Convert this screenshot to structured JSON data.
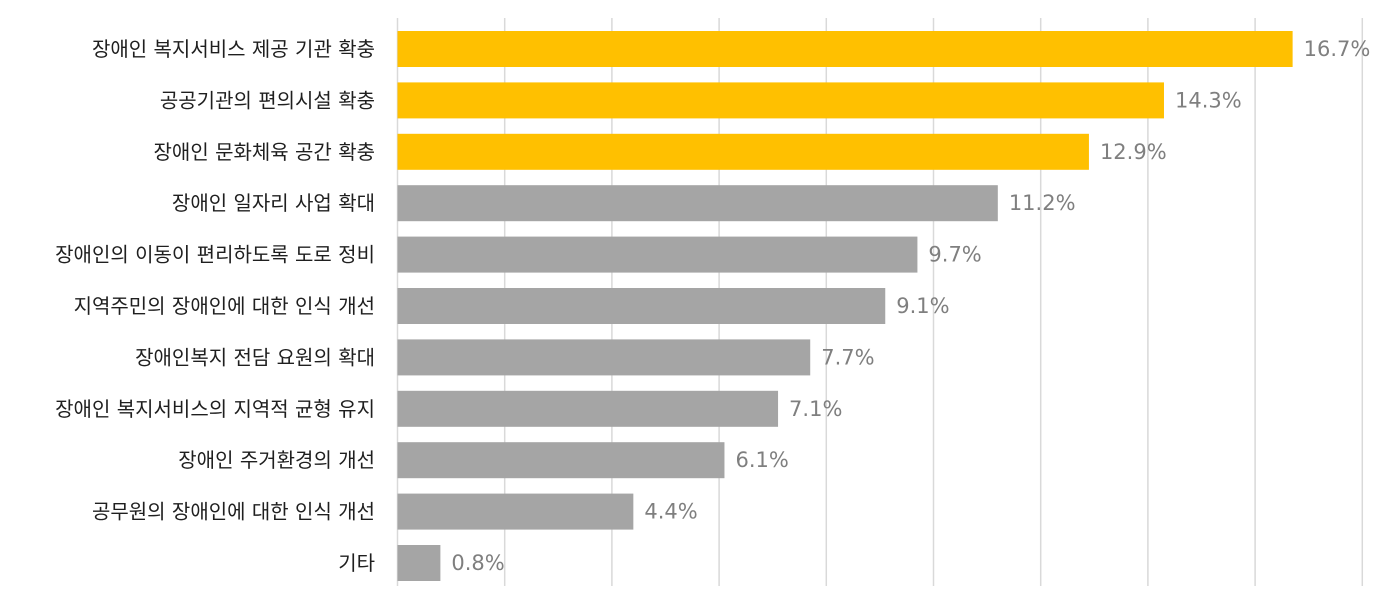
{
  "chart_data": {
    "type": "bar",
    "orientation": "horizontal",
    "title": "",
    "xlabel": "",
    "ylabel": "",
    "unit": "%",
    "xlim": [
      0,
      18
    ],
    "x_gridlines": [
      0,
      2,
      4,
      6,
      8,
      10,
      12,
      14,
      16,
      18
    ],
    "grid": true,
    "legend": "none",
    "categories": [
      "장애인 복지서비스 제공 기관 확충",
      "공공기관의 편의시설 확충",
      "장애인 문화체육 공간 확충",
      "장애인 일자리 사업 확대",
      "장애인의 이동이 편리하도록 도로 정비",
      "지역주민의 장애인에 대한 인식 개선",
      "장애인복지 전담 요원의 확대",
      "장애인 복지서비스의 지역적 균형 유지",
      "장애인 주거환경의 개선",
      "공무원의 장애인에 대한 인식 개선",
      "기타"
    ],
    "values": [
      16.7,
      14.3,
      12.9,
      11.2,
      9.7,
      9.1,
      7.7,
      7.1,
      6.1,
      4.4,
      0.8
    ],
    "value_labels": [
      "16.7%",
      "14.3%",
      "12.9%",
      "11.2%",
      "9.7%",
      "9.1%",
      "7.7%",
      "7.1%",
      "6.1%",
      "4.4%",
      "0.8%"
    ],
    "highlight_count": 3,
    "colors": {
      "highlight": "#FFC000",
      "default": "#A5A5A5",
      "value_label": "#7F7F7F",
      "category_label": "#1F1F1F",
      "grid": "#D9D9D9"
    }
  }
}
